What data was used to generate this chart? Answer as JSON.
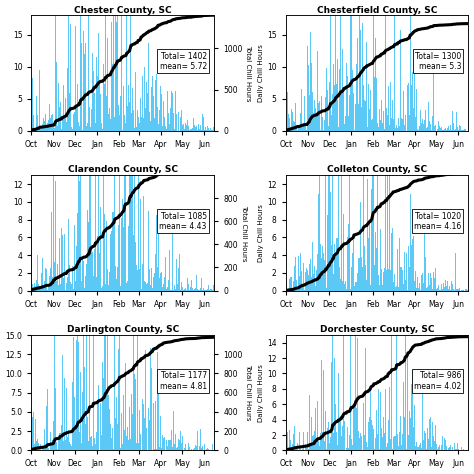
{
  "counties": [
    {
      "title": "Chester County, SC",
      "total": 1402,
      "mean": 5.72,
      "ylim_bar": [
        0,
        18
      ],
      "ylim_cum": [
        0,
        1400
      ],
      "cum_ticks": [
        0,
        500,
        1000
      ],
      "bar_ticks": [
        0,
        5,
        10,
        15
      ],
      "col": 0
    },
    {
      "title": "Chesterfield County, SC",
      "total": 1300,
      "mean": 5.3,
      "ylim_bar": [
        0,
        18
      ],
      "ylim_cum": [
        0,
        1400
      ],
      "cum_ticks": null,
      "bar_ticks": [
        0,
        5,
        10,
        15
      ],
      "col": 1
    },
    {
      "title": "Clarendon County, SC",
      "total": 1085,
      "mean": 4.43,
      "ylim_bar": [
        0,
        13
      ],
      "ylim_cum": [
        0,
        1000
      ],
      "cum_ticks": [
        0,
        200,
        400,
        600,
        800
      ],
      "bar_ticks": null,
      "col": 0
    },
    {
      "title": "Colleton County, SC",
      "total": 1020,
      "mean": 4.16,
      "ylim_bar": [
        0,
        13
      ],
      "ylim_cum": [
        0,
        1000
      ],
      "cum_ticks": null,
      "bar_ticks": [
        0,
        2,
        4,
        6,
        8,
        10,
        12
      ],
      "col": 1
    },
    {
      "title": "Darlington County, SC",
      "total": 1177,
      "mean": 4.81,
      "ylim_bar": [
        0,
        15
      ],
      "ylim_cum": [
        0,
        1200
      ],
      "cum_ticks": [
        0,
        200,
        400,
        600,
        800,
        1000
      ],
      "bar_ticks": null,
      "col": 0
    },
    {
      "title": "Dorchester County, SC",
      "total": 986,
      "mean": 4.02,
      "ylim_bar": [
        0,
        15
      ],
      "ylim_cum": [
        0,
        1000
      ],
      "cum_ticks": null,
      "bar_ticks": [
        0,
        2,
        4,
        6,
        8,
        10,
        12,
        14
      ],
      "col": 1
    }
  ],
  "months": [
    "Oct",
    "Nov",
    "Dec",
    "Jan",
    "Feb",
    "Mar",
    "Apr",
    "May",
    "Jun"
  ],
  "month_starts": [
    0,
    31,
    61,
    92,
    123,
    151,
    182,
    212,
    243
  ],
  "bar_color": "#5bc8f5",
  "line_color": "black",
  "background_color": "white",
  "ylabel_right_left_col": "Total Chill Hours",
  "ylabel_left_right_col": "Daily Chill Hours"
}
